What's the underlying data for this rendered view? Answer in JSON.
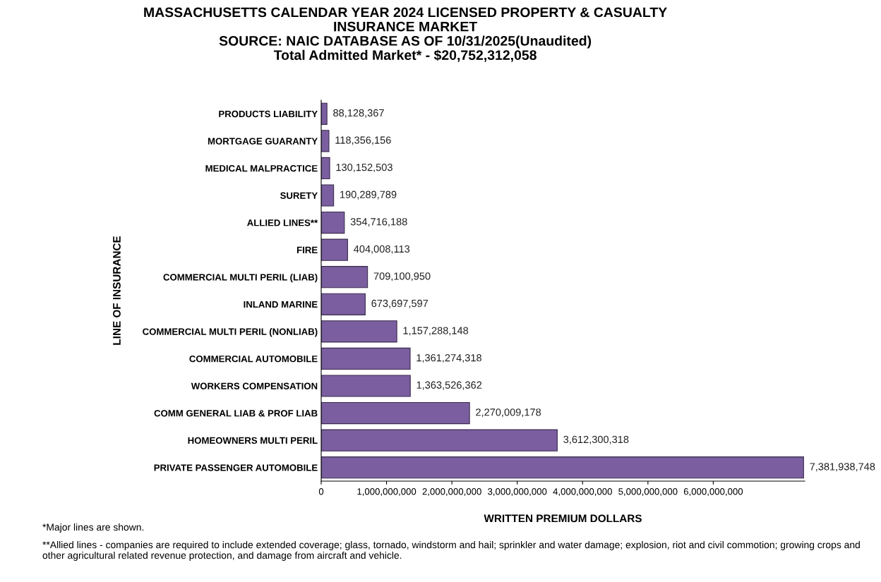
{
  "chart_data": {
    "type": "bar",
    "orientation": "horizontal",
    "title": "MASSACHUSETTS CALENDAR YEAR 2024 LICENSED PROPERTY & CASUALTY\nINSURANCE MARKET\nSOURCE: NAIC DATABASE AS OF 10/31/2025(Unaudited)\nTotal Admitted Market* - $20,752,312,058",
    "xlabel": "WRITTEN PREMIUM DOLLARS",
    "ylabel": "LINE OF INSURANCE",
    "categories": [
      "PRODUCTS LIABILITY",
      "MORTGAGE GUARANTY",
      "MEDICAL MALPRACTICE",
      "SURETY",
      "ALLIED LINES**",
      "FIRE",
      "COMMERCIAL MULTI PERIL (LIAB)",
      "INLAND MARINE",
      "COMMERCIAL MULTI PERIL (NONLIAB)",
      "COMMERCIAL AUTOMOBILE",
      "WORKERS COMPENSATION",
      "COMM GENERAL LIAB & PROF LIAB",
      "HOMEOWNERS MULTI PERIL",
      "PRIVATE PASSENGER AUTOMOBILE"
    ],
    "values": [
      88128367,
      118356156,
      130152503,
      190289789,
      354716188,
      404008113,
      709100950,
      673697597,
      1157288148,
      1361274318,
      1363526362,
      2270009178,
      3612300318,
      7381938748
    ],
    "value_labels": [
      "88,128,367",
      "118,356,156",
      "130,152,503",
      "190,289,789",
      "354,716,188",
      "404,008,113",
      "709,100,950",
      "673,697,597",
      "1,157,288,148",
      "1,361,274,318",
      "1,363,526,362",
      "2,270,009,178",
      "3,612,300,318",
      "7,381,938,748"
    ],
    "color": "#7b5ea0",
    "xlim": [
      0,
      7400000000
    ],
    "xticks": [
      0,
      {
        "value": 1000000000,
        "label": "1,000,000,000"
      },
      {
        "value": 2000000000,
        "label": "2,000,000,000"
      },
      {
        "value": 3000000000,
        "label": "3,000,000,000"
      },
      {
        "value": 4000000000,
        "label": "4,000,000,000"
      },
      {
        "value": 5000000000,
        "label": "5,000,000,000"
      },
      {
        "value": 6000000000,
        "label": "6,000,000,000"
      }
    ],
    "grid": false,
    "legend": false,
    "annotations": [
      "*Major lines are shown.",
      "**Allied lines - companies are required to include extended coverage; glass, tornado, windstorm and hail; sprinkler and water damage; explosion, riot and civil commotion; growing crops and other agricultural related revenue protection, and damage from aircraft and vehicle."
    ]
  }
}
